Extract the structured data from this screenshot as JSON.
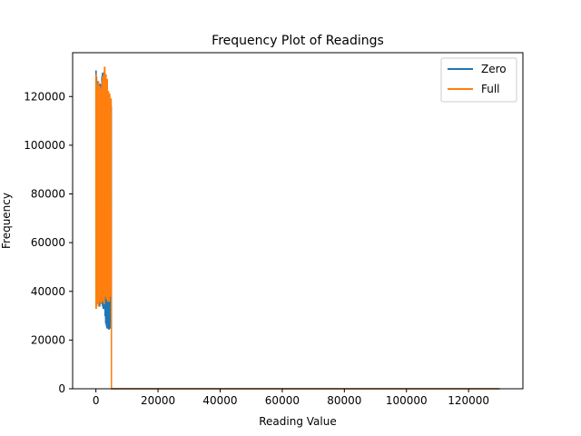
{
  "chart_data": {
    "type": "line",
    "title": "Frequency Plot of Readings",
    "xlabel": "Reading Value",
    "ylabel": "Frequency",
    "xlim": [
      -7500,
      137500
    ],
    "ylim": [
      0,
      138000
    ],
    "x_ticks": [
      0,
      20000,
      40000,
      60000,
      80000,
      100000,
      120000
    ],
    "y_ticks": [
      0,
      20000,
      40000,
      60000,
      80000,
      100000,
      120000
    ],
    "x_tick_labels": [
      "0",
      "20000",
      "40000",
      "60000",
      "80000",
      "100000",
      "120000"
    ],
    "y_tick_labels": [
      "0",
      "20000",
      "40000",
      "60000",
      "80000",
      "100000",
      "120000"
    ],
    "grid": false,
    "legend": "upper-right",
    "series": [
      {
        "name": "Zero",
        "color": "#1f77b4",
        "x_range": [
          0,
          5000
        ],
        "x": [
          0,
          100,
          300,
          500,
          700,
          900,
          1100,
          1300,
          1500,
          1700,
          1900,
          2100,
          2300,
          2500,
          2700,
          2900,
          3100,
          3300,
          3500,
          3700,
          3900,
          4100,
          4300,
          4500,
          4700,
          4900
        ],
        "peaks": [
          130500,
          128000,
          123000,
          126000,
          121000,
          124000,
          119000,
          125000,
          122000,
          120000,
          128000,
          129500,
          123000,
          121000,
          118000,
          124000,
          120000,
          122000,
          119000,
          121000,
          117000,
          118000,
          116000,
          117000,
          115000,
          116000
        ],
        "troughs": [
          34000,
          36000,
          35000,
          37000,
          36000,
          35000,
          34000,
          37000,
          38000,
          35000,
          36000,
          34000,
          33000,
          35000,
          33000,
          30000,
          27000,
          26000,
          25000,
          25500,
          25000,
          24500,
          25000,
          25500,
          25000,
          46000
        ],
        "tail_x": [
          5000,
          130000
        ],
        "tail_y": [
          0,
          0
        ]
      },
      {
        "name": "Full",
        "color": "#ff7f0e",
        "x_range": [
          0,
          5000
        ],
        "x": [
          0,
          150,
          350,
          550,
          750,
          950,
          1150,
          1350,
          1550,
          1750,
          1950,
          2150,
          2350,
          2550,
          2750,
          2950,
          3150,
          3350,
          3550,
          3750,
          3950,
          4150,
          4350,
          4550,
          4750
        ],
        "peaks": [
          129000,
          125000,
          118000,
          122000,
          126000,
          120000,
          124000,
          119000,
          123000,
          121000,
          126000,
          128000,
          122000,
          130000,
          132000,
          125000,
          129000,
          121000,
          127000,
          120000,
          122000,
          119000,
          121000,
          118000,
          119000
        ],
        "troughs": [
          33000,
          35000,
          38000,
          36000,
          34000,
          37000,
          39000,
          36000,
          35000,
          37000,
          38000,
          36000,
          37000,
          35000,
          38000,
          40000,
          39000,
          37000,
          38000,
          36000,
          37000,
          36000,
          38000,
          40000,
          46000
        ],
        "tail_x": [
          5000,
          130000
        ],
        "tail_y": [
          0,
          0
        ]
      }
    ]
  }
}
